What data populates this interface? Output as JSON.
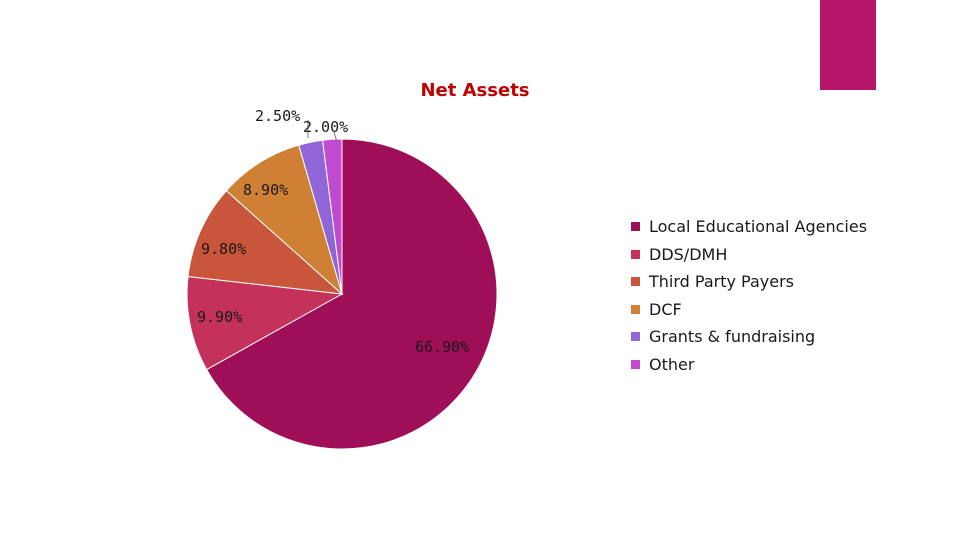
{
  "colors": {
    "accent": "#b5166a",
    "title": "#c00000"
  },
  "chart_data": {
    "type": "pie",
    "title": "Net Assets",
    "legend_position": "right",
    "start_angle_deg": 0,
    "direction": "clockwise",
    "slices": [
      {
        "name": "Local Educational Agencies",
        "value": 66.9,
        "label": "66.90%",
        "color": "#9e0f58"
      },
      {
        "name": "DDS/DMH",
        "value": 9.9,
        "label": "9.90%",
        "color": "#c4325c"
      },
      {
        "name": "Third Party Payers",
        "value": 9.8,
        "label": "9.80%",
        "color": "#c9553a"
      },
      {
        "name": "DCF",
        "value": 8.9,
        "label": "8.90%",
        "color": "#cf8035"
      },
      {
        "name": "Grants & fundraising",
        "value": 2.5,
        "label": "2.50%",
        "color": "#9066d6"
      },
      {
        "name": "Other",
        "value": 2.0,
        "label": "2.00%",
        "color": "#c04bd0"
      }
    ]
  }
}
